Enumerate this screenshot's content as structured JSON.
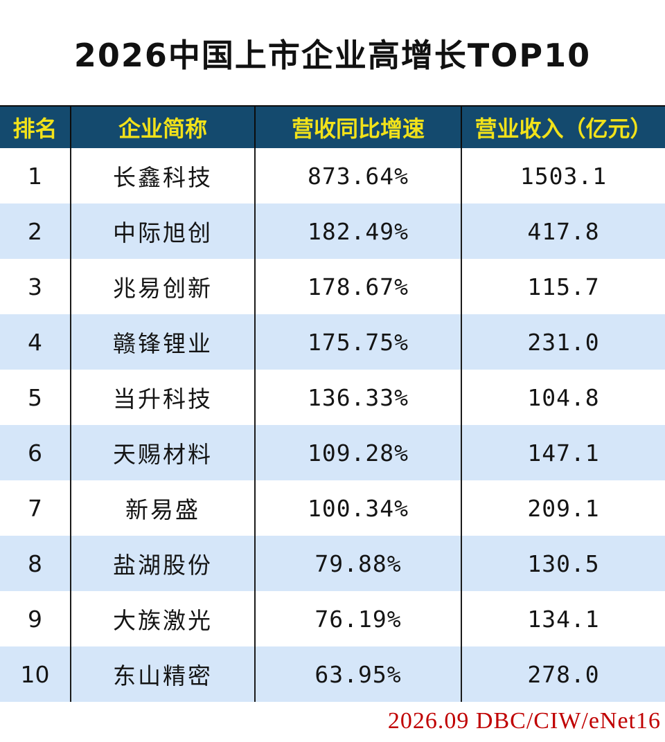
{
  "chart_data": {
    "type": "table",
    "title": "2026中国上市企业高增长TOP10",
    "columns": [
      "排名",
      "企业简称",
      "营收同比增速",
      "营业收入（亿元）"
    ],
    "rows": [
      {
        "rank": "1",
        "name": "长鑫科技",
        "growth": "873.64%",
        "revenue": "1503.1"
      },
      {
        "rank": "2",
        "name": "中际旭创",
        "growth": "182.49%",
        "revenue": "417.8"
      },
      {
        "rank": "3",
        "name": "兆易创新",
        "growth": "178.67%",
        "revenue": "115.7"
      },
      {
        "rank": "4",
        "name": "赣锋锂业",
        "growth": "175.75%",
        "revenue": "231.0"
      },
      {
        "rank": "5",
        "name": "当升科技",
        "growth": "136.33%",
        "revenue": "104.8"
      },
      {
        "rank": "6",
        "name": "天赐材料",
        "growth": "109.28%",
        "revenue": "147.1"
      },
      {
        "rank": "7",
        "name": "新易盛",
        "growth": "100.34%",
        "revenue": "209.1"
      },
      {
        "rank": "8",
        "name": "盐湖股份",
        "growth": "79.88%",
        "revenue": "130.5"
      },
      {
        "rank": "9",
        "name": "大族激光",
        "growth": "76.19%",
        "revenue": "134.1"
      },
      {
        "rank": "10",
        "name": "东山精密",
        "growth": "63.95%",
        "revenue": "278.0"
      }
    ],
    "source": "2026.09 DBC/CIW/eNet16"
  },
  "colors": {
    "header_background": "#144a6e",
    "header_text": "#f2e21a",
    "stripe": "#d5e6f9",
    "source_text": "#c00000"
  }
}
